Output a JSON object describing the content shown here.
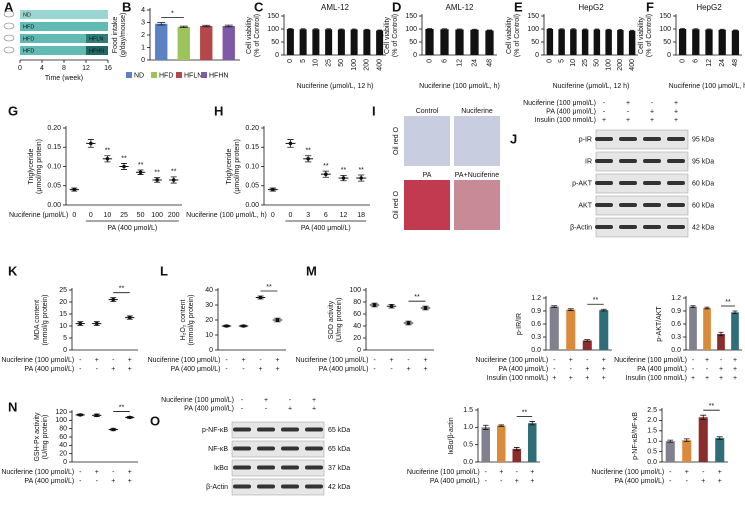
{
  "chart_data": [
    {
      "panel": "A",
      "type": "timeline",
      "rows": [
        {
          "segments": [
            {
              "label": "ND",
              "start": 0,
              "end": 16,
              "color": "#9ad6d1"
            }
          ]
        },
        {
          "segments": [
            {
              "label": "HFD",
              "start": 0,
              "end": 16,
              "color": "#62bab4"
            }
          ]
        },
        {
          "segments": [
            {
              "label": "HFD",
              "start": 0,
              "end": 12,
              "color": "#62bab4"
            },
            {
              "label": "HFLN",
              "start": 12,
              "end": 16,
              "color": "#2e7f7a"
            }
          ]
        },
        {
          "segments": [
            {
              "label": "HFD",
              "start": 0,
              "end": 12,
              "color": "#62bab4"
            },
            {
              "label": "HFHN",
              "start": 12,
              "end": 16,
              "color": "#1f6965"
            }
          ]
        }
      ],
      "xlim": [
        0,
        16
      ],
      "xticks": [
        0,
        4,
        8,
        12,
        16
      ],
      "xlabel": "Time (week)"
    },
    {
      "panel": "B",
      "type": "bar",
      "legend": true,
      "categories": [
        "ND",
        "HFD",
        "HFLN",
        "HFHN"
      ],
      "colors": [
        "#5b82c4",
        "#9cc45a",
        "#b5474a",
        "#7e5aa6"
      ],
      "values": [
        2.9,
        2.65,
        2.72,
        2.72
      ],
      "errors": [
        0.1,
        0.06,
        0.06,
        0.07
      ],
      "ylabel": [
        "Food intake",
        "(g/day/mouse)"
      ],
      "ylim": [
        0,
        4
      ],
      "yticks": [
        0,
        1,
        2,
        3,
        4
      ],
      "significance": "*"
    },
    {
      "panel": "C",
      "type": "bar",
      "title": "AML-12",
      "categories": [
        "0",
        "5",
        "10",
        "25",
        "50",
        "100",
        "200",
        "400"
      ],
      "color": "#111111",
      "values": [
        100,
        99,
        99,
        99,
        98,
        98,
        97,
        94
      ],
      "errors": [
        2,
        2,
        2,
        2,
        2,
        2,
        2,
        2
      ],
      "ylabel": [
        "Cell viability",
        "(% of Control)"
      ],
      "ylim": [
        0,
        150
      ],
      "yticks": [
        0,
        50,
        100,
        150
      ],
      "xlabel": "Nuciferine (μmol/L, 12 h)"
    },
    {
      "panel": "D",
      "type": "bar",
      "title": "AML-12",
      "categories": [
        "0",
        "6",
        "12",
        "24",
        "48"
      ],
      "color": "#111111",
      "values": [
        100,
        99,
        98,
        97,
        94
      ],
      "errors": [
        2,
        2,
        2,
        2,
        2
      ],
      "ylabel": [
        "Cell viability",
        "(% of Control)"
      ],
      "ylim": [
        0,
        150
      ],
      "yticks": [
        0,
        50,
        100,
        150
      ],
      "xlabel": "Nuciferine (100 μmol/L, h)"
    },
    {
      "panel": "E",
      "type": "bar",
      "title": "HepG2",
      "categories": [
        "0",
        "5",
        "10",
        "25",
        "50",
        "100",
        "200",
        "400"
      ],
      "color": "#111111",
      "values": [
        100,
        99,
        99,
        98,
        98,
        97,
        96,
        93
      ],
      "errors": [
        2,
        2,
        2,
        2,
        2,
        2,
        2,
        2
      ],
      "ylabel": [
        "Cell viability",
        "(% of Control)"
      ],
      "ylim": [
        0,
        150
      ],
      "yticks": [
        0,
        50,
        100,
        150
      ],
      "xlabel": "Nuciferine (μmol/L, 12 h)"
    },
    {
      "panel": "F",
      "type": "bar",
      "title": "HepG2",
      "categories": [
        "0",
        "6",
        "12",
        "24",
        "48"
      ],
      "color": "#111111",
      "values": [
        100,
        99,
        98,
        97,
        94
      ],
      "errors": [
        2,
        2,
        2,
        2,
        2
      ],
      "ylabel": [
        "Cell viability",
        "(% of Control)"
      ],
      "ylim": [
        0,
        150
      ],
      "yticks": [
        0,
        50,
        100,
        150
      ],
      "xlabel": "Nuciferine (100 μmol/L, h)"
    },
    {
      "panel": "G",
      "type": "dot",
      "categories": [
        "0",
        "0",
        "10",
        "25",
        "50",
        "100",
        "200"
      ],
      "values": [
        0.04,
        0.16,
        0.12,
        0.1,
        0.085,
        0.065,
        0.065
      ],
      "errors": [
        0.004,
        0.01,
        0.008,
        0.008,
        0.006,
        0.006,
        0.008
      ],
      "annotations": [
        null,
        null,
        "**",
        "**",
        "**",
        "**",
        "**"
      ],
      "ylabel": [
        "Triglyceride",
        "(μmol/mg protein)"
      ],
      "ylim": [
        0,
        0.2
      ],
      "yticks": [
        {
          "value": 0,
          "label": "0.00"
        },
        0.05,
        {
          "value": 0.1,
          "label": "0.10"
        },
        0.15,
        {
          "value": 0.2,
          "label": "0.20"
        }
      ],
      "xlabel": "Nuciferine (μmol/L)",
      "group_label": "PA (400 μmol/L)"
    },
    {
      "panel": "H",
      "type": "dot",
      "categories": [
        "0",
        "0",
        "3",
        "6",
        "12",
        "18"
      ],
      "values": [
        0.04,
        0.16,
        0.12,
        0.08,
        0.07,
        0.07
      ],
      "errors": [
        0.004,
        0.01,
        0.008,
        0.008,
        0.007,
        0.008
      ],
      "annotations": [
        null,
        null,
        "**",
        "**",
        "**",
        "**"
      ],
      "ylabel": [
        "Triglyceride",
        "(μmol/mg protein)"
      ],
      "ylim": [
        0,
        0.2
      ],
      "yticks": [
        {
          "value": 0,
          "label": "0.00"
        },
        0.05,
        {
          "value": 0.1,
          "label": "0.10"
        },
        0.15,
        {
          "value": 0.2,
          "label": "0.20"
        }
      ],
      "xlabel": "Nuciferine (100 μmol/L, h)",
      "group_label": "PA (400 μmol/L)"
    },
    {
      "panel": "K",
      "type": "dot",
      "values": [
        11,
        11,
        21,
        13.5
      ],
      "errors": [
        0.8,
        0.8,
        0.8,
        0.7
      ],
      "ylabel": [
        "MDA content",
        "(mmol/g protein)"
      ],
      "ylim": [
        0,
        25
      ],
      "yticks": [
        0,
        5,
        10,
        15,
        20,
        25
      ],
      "treatments": [
        {
          "name": "Nuciferine (100 μmol/L)",
          "signs": [
            "-",
            "+",
            "-",
            "+"
          ]
        },
        {
          "name": "PA (400 μmol/L)",
          "signs": [
            "-",
            "-",
            "+",
            "+"
          ]
        }
      ],
      "significance": "**"
    },
    {
      "panel": "L",
      "type": "dot",
      "values": [
        16,
        16,
        35,
        20
      ],
      "errors": [
        0.6,
        0.6,
        1,
        1.2
      ],
      "ylabel": [
        "H₂O₂ content",
        "(mmol/g protein)"
      ],
      "ylim": [
        0,
        40
      ],
      "yticks": [
        0,
        10,
        20,
        30,
        40
      ],
      "treatments": [
        {
          "name": "Nuciferine (100 μmol/L)",
          "signs": [
            "-",
            "+",
            "-",
            "+"
          ]
        },
        {
          "name": "PA (400 μmol/L)",
          "signs": [
            "-",
            "-",
            "+",
            "+"
          ]
        }
      ],
      "significance": "**"
    },
    {
      "panel": "M",
      "type": "dot",
      "values": [
        75,
        73,
        45,
        70
      ],
      "errors": [
        3,
        3,
        3,
        3
      ],
      "ylabel": [
        "SOD activity",
        "(U/mg protein)"
      ],
      "ylim": [
        0,
        100
      ],
      "yticks": [
        0,
        20,
        40,
        60,
        80,
        100
      ],
      "treatments": [
        {
          "name": "Nuciferine (100 μmol/L)",
          "signs": [
            "-",
            "+",
            "-",
            "+"
          ]
        },
        {
          "name": "PA (400 μmol/L)",
          "signs": [
            "-",
            "-",
            "+",
            "+"
          ]
        }
      ],
      "significance": "**"
    },
    {
      "type": "bar",
      "colors": [
        "#80808f",
        "#d98a3a",
        "#8b2d2d",
        "#2f6e78"
      ],
      "values": [
        1.0,
        0.93,
        0.22,
        0.92
      ],
      "errors": [
        0.02,
        0.02,
        0.02,
        0.02
      ],
      "ylabel": [
        "p-IR/IR"
      ],
      "ylim": [
        0,
        1.2
      ],
      "yticks": [
        {
          "value": 0,
          "label": "0.0"
        },
        0.3,
        0.6,
        0.9,
        1.2
      ],
      "treatments": [
        {
          "name": "Nuciferine (100 μmol/L)",
          "signs": [
            "-",
            "+",
            "-",
            "+"
          ]
        },
        {
          "name": "PA (400 μmol/L)",
          "signs": [
            "-",
            "-",
            "+",
            "+"
          ]
        },
        {
          "name": "Insulin (100 nmol/L)",
          "signs": [
            "+",
            "+",
            "+",
            "+"
          ]
        }
      ],
      "significance": "**"
    },
    {
      "type": "bar",
      "colors": [
        "#80808f",
        "#d98a3a",
        "#8b2d2d",
        "#2f6e78"
      ],
      "values": [
        1.0,
        0.97,
        0.37,
        0.87
      ],
      "errors": [
        0.02,
        0.02,
        0.04,
        0.03
      ],
      "ylabel": [
        "p-AKT/AKT"
      ],
      "ylim": [
        0,
        1.2
      ],
      "yticks": [
        {
          "value": 0,
          "label": "0.0"
        },
        0.3,
        0.6,
        0.9,
        1.2
      ],
      "treatments": [
        {
          "name": "Nuciferine (100 μmol/L)",
          "signs": [
            "-",
            "+",
            "-",
            "+"
          ]
        },
        {
          "name": "PA (400 μmol/L)",
          "signs": [
            "-",
            "-",
            "+",
            "+"
          ]
        },
        {
          "name": "Insulin (100 nmol/L)",
          "signs": [
            "+",
            "+",
            "+",
            "+"
          ]
        }
      ],
      "significance": "**"
    },
    {
      "panel": "N",
      "type": "dot",
      "values": [
        113,
        112,
        78,
        107
      ],
      "errors": [
        2,
        3,
        3,
        2
      ],
      "ylabel": [
        "GSH-Px activity",
        "(U/mg protein)"
      ],
      "ylim": [
        0,
        120
      ],
      "yticks": [
        0,
        20,
        40,
        60,
        80,
        100,
        120
      ],
      "treatments": [
        {
          "name": "Nuciferine (100 μmol/L)",
          "signs": [
            "-",
            "+",
            "-",
            "+"
          ]
        },
        {
          "name": "PA (400 μmol/L)",
          "signs": [
            "-",
            "-",
            "+",
            "+"
          ]
        }
      ],
      "significance": "**"
    },
    {
      "type": "bar",
      "colors": [
        "#80808f",
        "#d98a3a",
        "#8b2d2d",
        "#2f6e78"
      ],
      "values": [
        1.0,
        1.05,
        0.38,
        1.12
      ],
      "errors": [
        0.06,
        0.02,
        0.04,
        0.05
      ],
      "ylabel": [
        "IκBα/β-actin"
      ],
      "ylim": [
        0,
        1.5
      ],
      "yticks": [
        {
          "value": 0,
          "label": "0.0"
        },
        0.5,
        {
          "value": 1,
          "label": "1.0"
        },
        1.5
      ],
      "treatments": [
        {
          "name": "Nuciferine (100 μmol/L)",
          "signs": [
            "-",
            "+",
            "-",
            "+"
          ]
        },
        {
          "name": "PA (400 μmol/L)",
          "signs": [
            "-",
            "-",
            "+",
            "+"
          ]
        }
      ],
      "significance": "**"
    },
    {
      "type": "bar",
      "colors": [
        "#80808f",
        "#d98a3a",
        "#8b2d2d",
        "#2f6e78"
      ],
      "values": [
        1.0,
        1.05,
        2.15,
        1.15
      ],
      "errors": [
        0.05,
        0.06,
        0.1,
        0.06
      ],
      "ylabel": [
        "p-NF-κB/NF-κB"
      ],
      "ylim": [
        0,
        2.5
      ],
      "yticks": [
        {
          "value": 0,
          "label": "0.0"
        },
        0.5,
        {
          "value": 1,
          "label": "1.0"
        },
        1.5,
        {
          "value": 2,
          "label": "2.0"
        },
        2.5
      ],
      "treatments": [
        {
          "name": "Nuciferine (100 μmol/L)",
          "signs": [
            "-",
            "+",
            "-",
            "+"
          ]
        },
        {
          "name": "PA (400 μmol/L)",
          "signs": [
            "-",
            "-",
            "+",
            "+"
          ]
        }
      ],
      "significance": "**"
    }
  ],
  "micrograph": {
    "panel": "I",
    "labels": [
      "Control",
      "Nuciferine",
      "PA",
      "PA+Nuciferine"
    ],
    "stain": [
      "Oil red O",
      "Oil red O"
    ]
  },
  "blots": [
    {
      "panel": "J",
      "treatments": [
        {
          "name": "Nuciferine (100 μmol/L)",
          "signs": [
            "-",
            "+",
            "-",
            "+"
          ]
        },
        {
          "name": "PA (400 μmol/L)",
          "signs": [
            "-",
            "-",
            "+",
            "+"
          ]
        },
        {
          "name": "Insulin (100 nmol/L)",
          "signs": [
            "+",
            "+",
            "+",
            "+"
          ]
        }
      ],
      "bands": [
        {
          "name": "p-IR",
          "size": "95 kDa"
        },
        {
          "name": "IR",
          "size": "95 kDa"
        },
        {
          "name": "p-AKT",
          "size": "60 kDa"
        },
        {
          "name": "AKT",
          "size": "60 kDa"
        },
        {
          "name": "β-Actin",
          "size": "42 kDa"
        }
      ]
    },
    {
      "panel": "O",
      "treatments": [
        {
          "name": "Nuciferine (100 μmol/L)",
          "signs": [
            "-",
            "+",
            "-",
            "+"
          ]
        },
        {
          "name": "PA (400 μmol/L)",
          "signs": [
            "-",
            "-",
            "+",
            "+"
          ]
        }
      ],
      "bands": [
        {
          "name": "p-NF-κB",
          "size": "65 kDa"
        },
        {
          "name": "NF-κB",
          "size": "65 kDa"
        },
        {
          "name": "IκBα",
          "size": "37 kDa"
        },
        {
          "name": "β-Actin",
          "size": "42 kDa"
        }
      ]
    }
  ]
}
